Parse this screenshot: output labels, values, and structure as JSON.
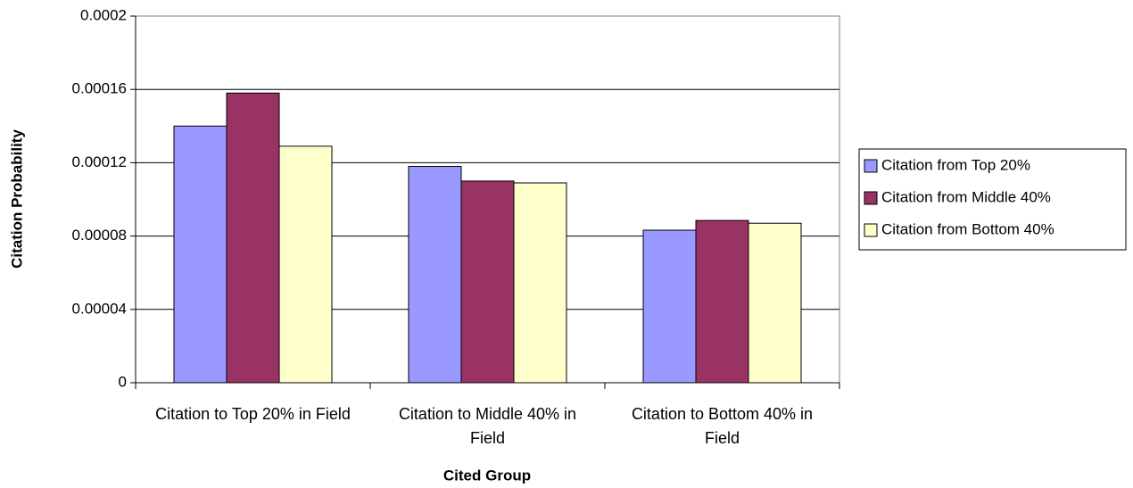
{
  "chart_data": {
    "type": "bar",
    "x_label": "Cited Group",
    "y_label": "Citation Probability",
    "categories": [
      "Citation to Top 20% in Field",
      "Citation to Middle 40% in Field",
      "Citation to Bottom 40% in Field"
    ],
    "series": [
      {
        "name": "Citation from Top 20%",
        "color": "#9999ff",
        "values": [
          0.00014,
          0.000118,
          8.32e-05
        ]
      },
      {
        "name": "Citation from Middle 40%",
        "color": "#993366",
        "values": [
          0.000158,
          0.00011,
          8.85e-05
        ]
      },
      {
        "name": "Citation from Bottom 40%",
        "color": "#ffffcc",
        "values": [
          0.000129,
          0.000109,
          8.7e-05
        ]
      }
    ],
    "ylim": [
      0,
      0.0002
    ],
    "yticks": [
      0,
      4e-05,
      8e-05,
      0.00012,
      0.00016,
      0.0002
    ],
    "grid": true,
    "legend": "right"
  }
}
